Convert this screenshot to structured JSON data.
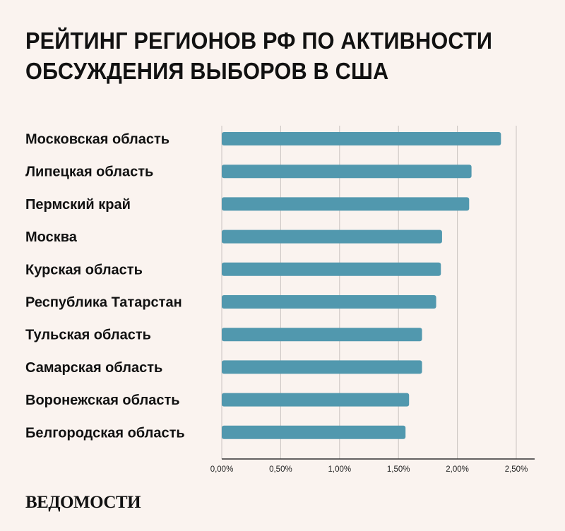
{
  "title_lines": [
    "РЕЙТИНГ РЕГИОНОВ РФ ПО АКТИВНОСТИ",
    "ОБСУЖДЕНИЯ ВЫБОРОВ В США"
  ],
  "logo_text": "ВЕДОМОСТИ",
  "colors": {
    "bar": "#5198ae",
    "background": "#faf3ef",
    "grid": "#c9c3c0",
    "axis": "#333333"
  },
  "chart_data": {
    "type": "bar",
    "orientation": "horizontal",
    "title": "РЕЙТИНГ РЕГИОНОВ РФ ПО АКТИВНОСТИ ОБСУЖДЕНИЯ ВЫБОРОВ В США",
    "categories": [
      "Московская область",
      "Липецкая область",
      "Пермский край",
      "Москва",
      "Курская область",
      "Республика Татарстан",
      "Тульская область",
      "Самарская область",
      "Воронежская область",
      "Белгородская область"
    ],
    "values": [
      2.37,
      2.12,
      2.1,
      1.87,
      1.86,
      1.82,
      1.7,
      1.7,
      1.59,
      1.56
    ],
    "xlim": [
      0,
      2.5
    ],
    "xticks": [
      0,
      0.5,
      1.0,
      1.5,
      2.0,
      2.5
    ],
    "xtick_labels": [
      "0,00%",
      "0,50%",
      "1,00%",
      "1,50%",
      "2,00%",
      "2,50%"
    ],
    "xlabel": "",
    "ylabel": "",
    "grid": true,
    "legend": "none"
  }
}
